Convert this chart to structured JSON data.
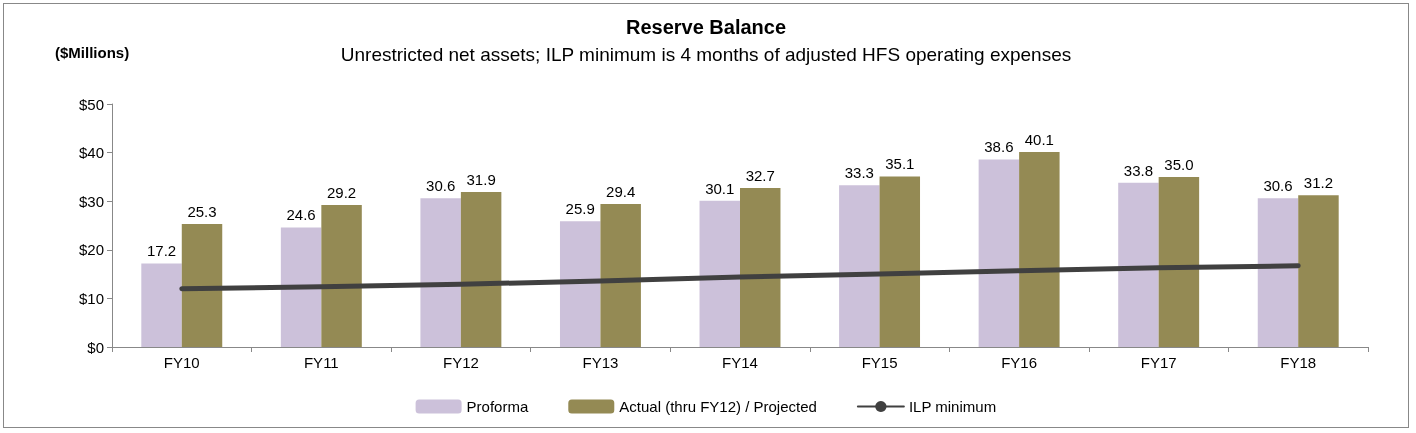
{
  "chart_data": {
    "type": "bar",
    "title": "Reserve Balance",
    "subtitle": "Unrestricted net assets; ILP minimum is 4 months of adjusted HFS operating expenses",
    "ylabel": "($Millions)",
    "categories": [
      "FY10",
      "FY11",
      "FY12",
      "FY13",
      "FY14",
      "FY15",
      "FY16",
      "FY17",
      "FY18"
    ],
    "series": [
      {
        "name": "Proforma",
        "color": "#ccc1da",
        "values": [
          17.2,
          24.6,
          30.6,
          25.9,
          30.1,
          33.3,
          38.6,
          33.8,
          30.6
        ],
        "value_labels": [
          "17.2",
          "24.6",
          "30.6",
          "25.9",
          "30.1",
          "33.3",
          "38.6",
          "33.8",
          "30.6"
        ]
      },
      {
        "name": "Actual (thru FY12) / Projected",
        "color": "#948a54",
        "values": [
          25.3,
          29.2,
          31.9,
          29.4,
          32.7,
          35.1,
          40.1,
          35.0,
          31.2
        ],
        "value_labels": [
          "25.3",
          "29.2",
          "31.9",
          "29.4",
          "32.7",
          "35.1",
          "40.1",
          "35.0",
          "31.2"
        ]
      },
      {
        "name": "ILP minimum",
        "type": "line",
        "color": "#404040",
        "values": [
          12.0,
          12.4,
          12.9,
          13.6,
          14.4,
          15.0,
          15.7,
          16.3,
          16.7
        ]
      }
    ],
    "ylim": [
      0,
      50
    ],
    "yticks": [
      {
        "value": 0,
        "label": "$0"
      },
      {
        "value": 10,
        "label": "$10"
      },
      {
        "value": 20,
        "label": "$20"
      },
      {
        "value": 30,
        "label": "$30"
      },
      {
        "value": 40,
        "label": "$40"
      },
      {
        "value": 50,
        "label": "$50"
      }
    ],
    "grid": false,
    "legend": "bottom",
    "marker": "none"
  }
}
